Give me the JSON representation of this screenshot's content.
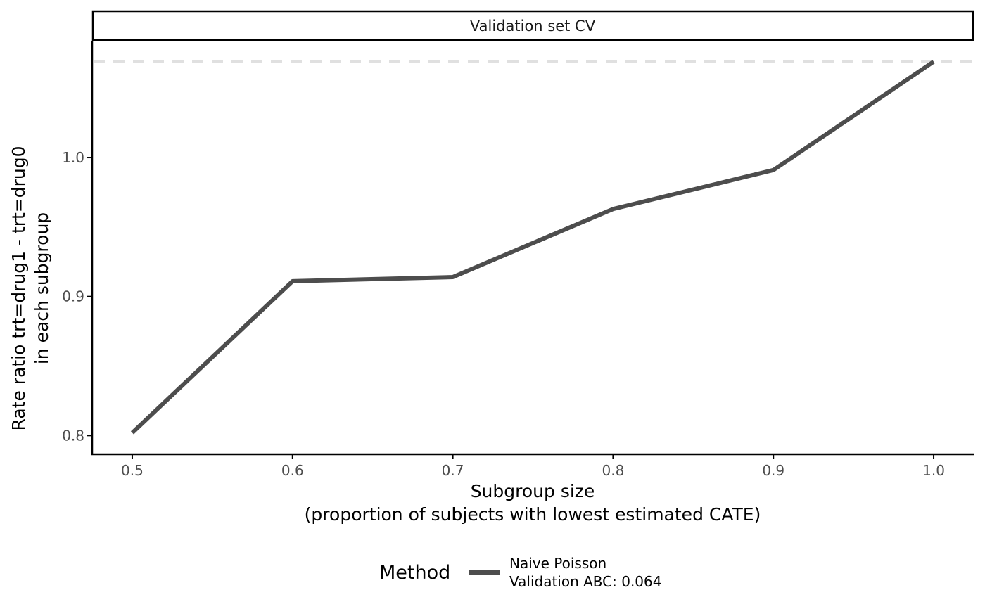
{
  "chart_data": {
    "type": "line",
    "panel_title": "Validation set CV",
    "xlabel_line1": "Subgroup size",
    "xlabel_line2": "(proportion of subjects with lowest estimated CATE)",
    "ylabel_line1": "Rate ratio trt=drug1 - trt=drug0",
    "ylabel_line2": "in each subgroup",
    "x": [
      0.5,
      0.6,
      0.7,
      0.8,
      0.9,
      1.0
    ],
    "series": [
      {
        "name": "Naive Poisson",
        "values": [
          0.802,
          0.911,
          0.914,
          0.963,
          0.991,
          1.069
        ]
      }
    ],
    "reference_line": {
      "y": 1.069,
      "style": "dashed",
      "color": "#e0e0e0"
    },
    "x_ticks": [
      0.5,
      0.6,
      0.7,
      0.8,
      0.9,
      1.0
    ],
    "x_tick_labels": [
      "0.5",
      "0.6",
      "0.7",
      "0.8",
      "0.9",
      "1.0"
    ],
    "y_ticks": [
      0.8,
      0.9,
      1.0
    ],
    "y_tick_labels": [
      "0.8",
      "0.9",
      "1.0"
    ],
    "xlim": [
      0.475,
      1.025
    ],
    "ylim": [
      0.7865,
      1.0835
    ],
    "grid": false,
    "legend": {
      "placement": "bottom",
      "title": "Method",
      "entries": [
        {
          "line1": "Naive Poisson",
          "line2": "Validation ABC: 0.064"
        }
      ]
    },
    "colors": {
      "series": "#4d4d4d",
      "axis": "#000000"
    }
  }
}
